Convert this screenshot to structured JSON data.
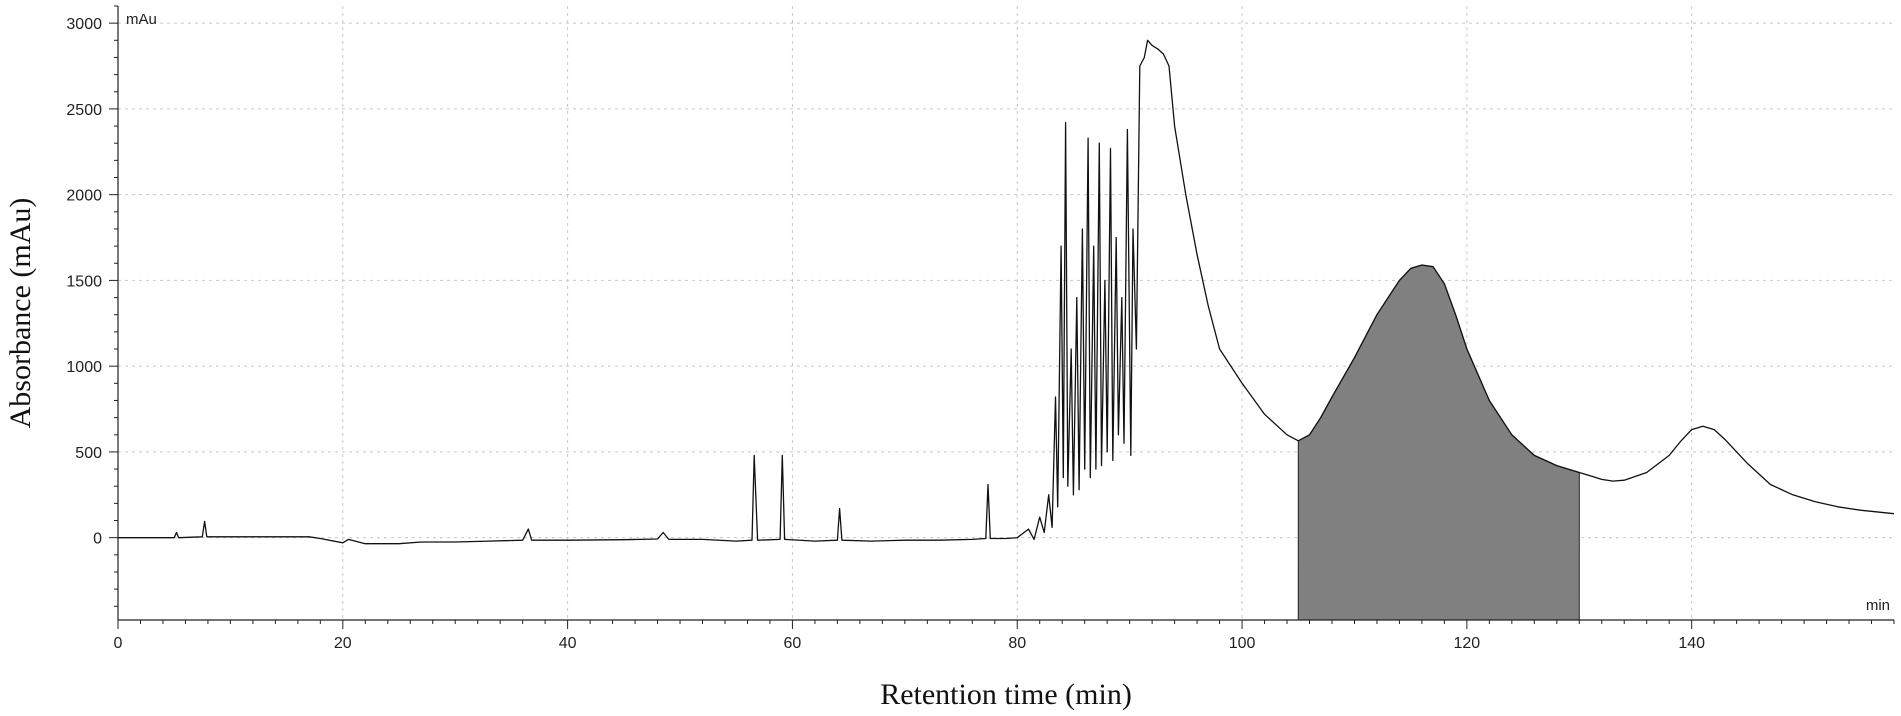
{
  "chart_data": {
    "type": "line",
    "xlabel": "Retention time (min)",
    "ylabel": "Absorbance (mAu)",
    "x_unit": "min",
    "y_unit": "mAu",
    "xlim": [
      0,
      158
    ],
    "ylim": [
      -480,
      3100
    ],
    "x_ticks": [
      0,
      20,
      40,
      60,
      80,
      100,
      120,
      140
    ],
    "y_ticks": [
      0,
      500,
      1000,
      1500,
      2000,
      2500,
      3000
    ],
    "grid": true,
    "shaded_region": {
      "x_start": 105,
      "x_end": 130,
      "color": "#808080"
    },
    "series": [
      {
        "points": [
          [
            0,
            0
          ],
          [
            5,
            0
          ],
          [
            5.2,
            30
          ],
          [
            5.4,
            0
          ],
          [
            7.5,
            5
          ],
          [
            7.7,
            95
          ],
          [
            7.9,
            5
          ],
          [
            17,
            5
          ],
          [
            18,
            -5
          ],
          [
            20,
            -30
          ],
          [
            20.5,
            -10
          ],
          [
            22,
            -35
          ],
          [
            25,
            -35
          ],
          [
            27,
            -25
          ],
          [
            30,
            -25
          ],
          [
            33,
            -20
          ],
          [
            36,
            -15
          ],
          [
            36.5,
            50
          ],
          [
            36.8,
            -15
          ],
          [
            40,
            -15
          ],
          [
            45,
            -12
          ],
          [
            48,
            -8
          ],
          [
            48.5,
            30
          ],
          [
            49,
            -10
          ],
          [
            52,
            -10
          ],
          [
            55,
            -20
          ],
          [
            56.4,
            -15
          ],
          [
            56.6,
            480
          ],
          [
            56.9,
            -15
          ],
          [
            58.9,
            -10
          ],
          [
            59.1,
            480
          ],
          [
            59.3,
            -10
          ],
          [
            62,
            -20
          ],
          [
            64,
            -15
          ],
          [
            64.2,
            170
          ],
          [
            64.4,
            -15
          ],
          [
            67,
            -20
          ],
          [
            70,
            -15
          ],
          [
            73,
            -15
          ],
          [
            76,
            -10
          ],
          [
            77.2,
            -5
          ],
          [
            77.4,
            310
          ],
          [
            77.6,
            -5
          ],
          [
            79,
            -5
          ],
          [
            80,
            0
          ],
          [
            81,
            50
          ],
          [
            81.5,
            -10
          ],
          [
            82,
            120
          ],
          [
            82.4,
            30
          ],
          [
            82.8,
            250
          ],
          [
            83.1,
            60
          ],
          [
            83.4,
            820
          ],
          [
            83.6,
            180
          ],
          [
            83.9,
            1700
          ],
          [
            84.1,
            350
          ],
          [
            84.3,
            2420
          ],
          [
            84.5,
            300
          ],
          [
            84.8,
            1100
          ],
          [
            85,
            250
          ],
          [
            85.3,
            1400
          ],
          [
            85.5,
            280
          ],
          [
            85.8,
            1800
          ],
          [
            86.0,
            400
          ],
          [
            86.3,
            2330
          ],
          [
            86.5,
            350
          ],
          [
            86.8,
            1700
          ],
          [
            87,
            400
          ],
          [
            87.3,
            2300
          ],
          [
            87.5,
            420
          ],
          [
            87.8,
            1500
          ],
          [
            88,
            500
          ],
          [
            88.3,
            2270
          ],
          [
            88.5,
            450
          ],
          [
            88.8,
            1750
          ],
          [
            89,
            600
          ],
          [
            89.3,
            1400
          ],
          [
            89.5,
            550
          ],
          [
            89.8,
            2380
          ],
          [
            90.1,
            480
          ],
          [
            90.3,
            1800
          ],
          [
            90.6,
            1100
          ],
          [
            90.9,
            2750
          ],
          [
            91.3,
            2800
          ],
          [
            91.6,
            2900
          ],
          [
            92,
            2870
          ],
          [
            92.5,
            2850
          ],
          [
            93,
            2820
          ],
          [
            93.5,
            2750
          ],
          [
            94,
            2400
          ],
          [
            95,
            2000
          ],
          [
            96,
            1650
          ],
          [
            97,
            1350
          ],
          [
            98,
            1100
          ],
          [
            100,
            900
          ],
          [
            102,
            720
          ],
          [
            104,
            600
          ],
          [
            105,
            565
          ],
          [
            106,
            600
          ],
          [
            107,
            700
          ],
          [
            108,
            820
          ],
          [
            110,
            1050
          ],
          [
            112,
            1300
          ],
          [
            114,
            1500
          ],
          [
            115,
            1570
          ],
          [
            116,
            1590
          ],
          [
            117,
            1580
          ],
          [
            118,
            1480
          ],
          [
            119,
            1300
          ],
          [
            120,
            1100
          ],
          [
            122,
            800
          ],
          [
            124,
            600
          ],
          [
            126,
            480
          ],
          [
            128,
            420
          ],
          [
            130,
            380
          ],
          [
            131,
            360
          ],
          [
            132,
            340
          ],
          [
            133,
            330
          ],
          [
            134,
            335
          ],
          [
            136,
            380
          ],
          [
            138,
            480
          ],
          [
            139,
            560
          ],
          [
            140,
            630
          ],
          [
            141,
            650
          ],
          [
            142,
            630
          ],
          [
            143,
            570
          ],
          [
            145,
            430
          ],
          [
            147,
            310
          ],
          [
            149,
            250
          ],
          [
            151,
            210
          ],
          [
            153,
            180
          ],
          [
            155,
            160
          ],
          [
            158,
            140
          ]
        ]
      }
    ]
  }
}
